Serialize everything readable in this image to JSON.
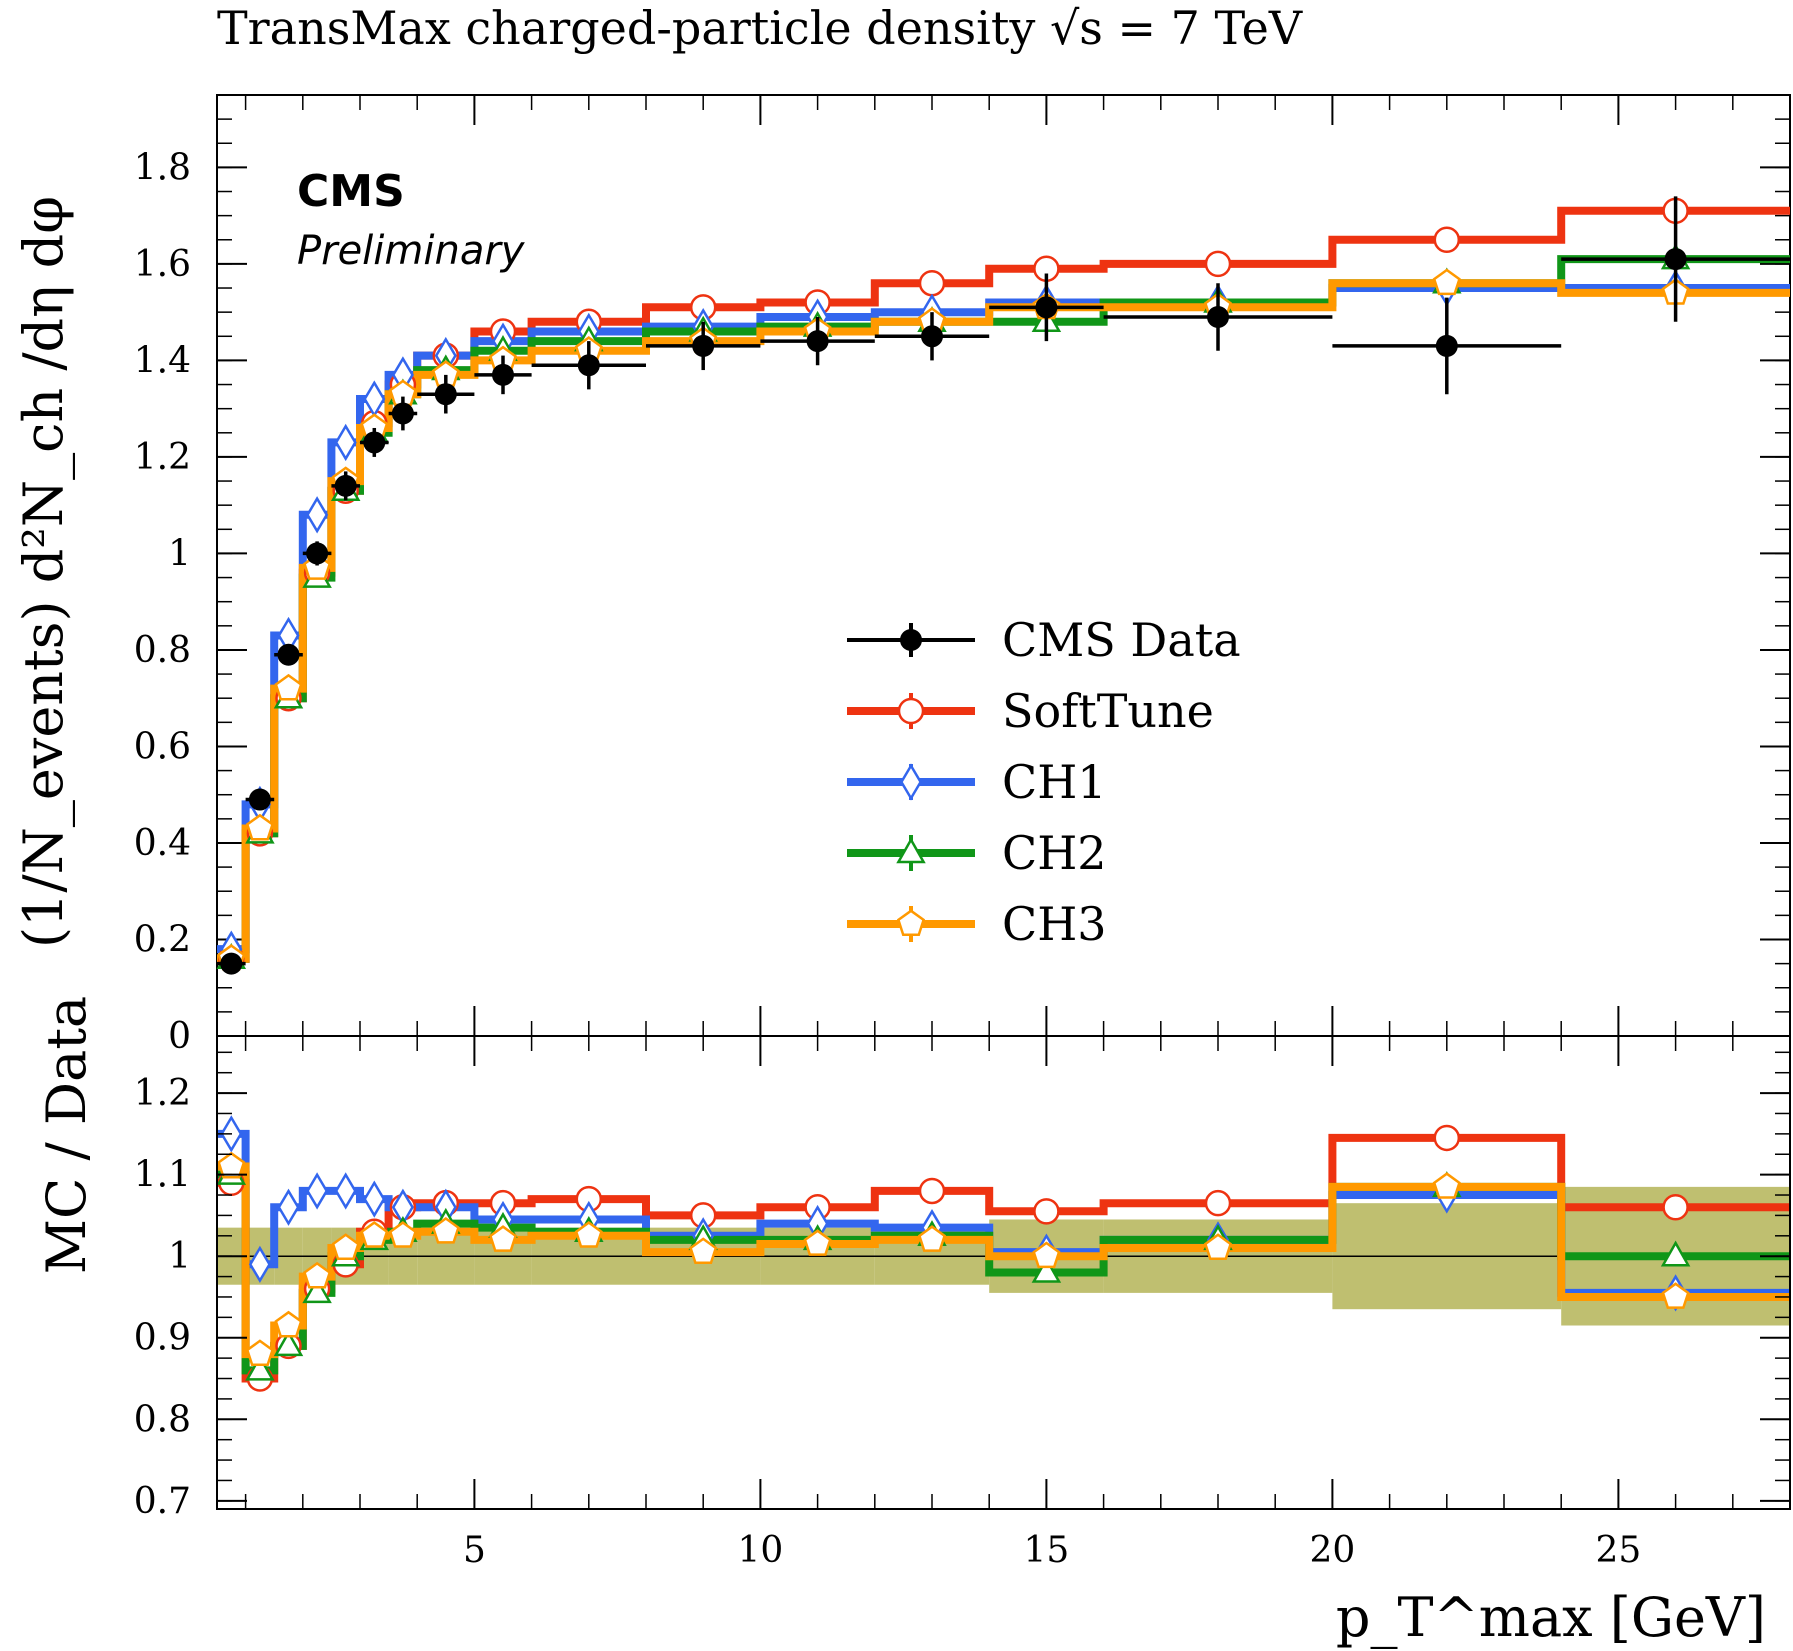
{
  "chart_data": [
    {
      "panel": "main",
      "type": "line",
      "title": "TransMax charged-particle density √s = 7 TeV",
      "experiment_label": "CMS",
      "status_label": "Preliminary",
      "ylabel": "(1/N_events) d²N_ch /dη dφ",
      "xlabel": "p_T^max [GeV]",
      "xlim": [
        0.5,
        28
      ],
      "ylim": [
        0,
        1.95
      ],
      "y_ticks": [
        "0",
        "0.2",
        "0.4",
        "0.6",
        "0.8",
        "1",
        "1.2",
        "1.4",
        "1.6",
        "1.8"
      ],
      "y_tick_values": [
        0,
        0.2,
        0.4,
        0.6,
        0.8,
        1.0,
        1.2,
        1.4,
        1.6,
        1.8
      ],
      "legend_position": "center-right",
      "bin_edges": [
        0.5,
        1.0,
        1.5,
        2.0,
        2.5,
        3.0,
        3.5,
        4.0,
        5.0,
        6.0,
        8.0,
        10.0,
        12.0,
        14.0,
        16.0,
        20.0,
        24.0,
        28.0
      ],
      "data": {
        "name": "CMS Data",
        "color": "#000000",
        "x": [
          0.75,
          1.25,
          1.75,
          2.25,
          2.75,
          3.25,
          3.75,
          4.5,
          5.5,
          7.0,
          9.0,
          11.0,
          13.0,
          15.0,
          18.0,
          22.0,
          26.0
        ],
        "y": [
          0.15,
          0.49,
          0.79,
          1.0,
          1.14,
          1.23,
          1.29,
          1.33,
          1.37,
          1.39,
          1.43,
          1.44,
          1.45,
          1.51,
          1.49,
          1.43,
          1.61
        ],
        "yerr": [
          0.01,
          0.015,
          0.02,
          0.025,
          0.03,
          0.03,
          0.035,
          0.04,
          0.04,
          0.05,
          0.05,
          0.05,
          0.05,
          0.07,
          0.07,
          0.1,
          0.13
        ]
      },
      "series": [
        {
          "name": "SoftTune",
          "color": "#ee3311",
          "marker": "circle",
          "values": [
            0.16,
            0.42,
            0.7,
            0.96,
            1.13,
            1.27,
            1.35,
            1.41,
            1.46,
            1.48,
            1.51,
            1.52,
            1.56,
            1.59,
            1.6,
            1.65,
            1.71
          ]
        },
        {
          "name": "CH1",
          "color": "#3366ee",
          "marker": "diamond",
          "values": [
            0.18,
            0.48,
            0.83,
            1.08,
            1.23,
            1.32,
            1.37,
            1.41,
            1.44,
            1.46,
            1.47,
            1.49,
            1.5,
            1.52,
            1.52,
            1.55,
            1.55
          ]
        },
        {
          "name": "CH2",
          "color": "#109618",
          "marker": "triangle",
          "values": [
            0.16,
            0.42,
            0.7,
            0.95,
            1.13,
            1.25,
            1.33,
            1.38,
            1.42,
            1.44,
            1.46,
            1.47,
            1.48,
            1.48,
            1.52,
            1.56,
            1.61
          ]
        },
        {
          "name": "CH3",
          "color": "#ff9900",
          "marker": "pentagon",
          "values": [
            0.16,
            0.43,
            0.72,
            0.97,
            1.15,
            1.26,
            1.33,
            1.37,
            1.4,
            1.42,
            1.44,
            1.46,
            1.48,
            1.51,
            1.51,
            1.56,
            1.54
          ]
        }
      ]
    },
    {
      "panel": "ratio",
      "type": "line",
      "ylabel": "MC / Data",
      "xlabel": "p_T^max [GeV]",
      "xlim": [
        0.5,
        28
      ],
      "ylim": [
        0.69,
        1.27
      ],
      "y_ticks": [
        "0.7",
        "0.8",
        "0.9",
        "1",
        "1.1",
        "1.2"
      ],
      "y_tick_values": [
        0.7,
        0.8,
        0.9,
        1.0,
        1.1,
        1.2
      ],
      "x_ticks": [
        "5",
        "10",
        "15",
        "20",
        "25"
      ],
      "x_tick_values": [
        5,
        10,
        15,
        20,
        25
      ],
      "band_color": "#b8b860",
      "data_uncertainty_band": [
        0.035,
        0.035,
        0.035,
        0.035,
        0.035,
        0.035,
        0.035,
        0.035,
        0.035,
        0.035,
        0.035,
        0.035,
        0.035,
        0.045,
        0.045,
        0.065,
        0.085
      ],
      "series": [
        {
          "name": "SoftTune",
          "color": "#ee3311",
          "marker": "circle",
          "values": [
            1.09,
            0.85,
            0.89,
            0.96,
            0.99,
            1.03,
            1.06,
            1.065,
            1.065,
            1.07,
            1.05,
            1.06,
            1.08,
            1.055,
            1.065,
            1.145,
            1.06
          ]
        },
        {
          "name": "CH1",
          "color": "#3366ee",
          "marker": "diamond",
          "values": [
            1.15,
            0.99,
            1.06,
            1.08,
            1.08,
            1.07,
            1.06,
            1.06,
            1.045,
            1.045,
            1.025,
            1.04,
            1.035,
            1.005,
            1.02,
            1.075,
            0.955
          ]
        },
        {
          "name": "CH2",
          "color": "#109618",
          "marker": "triangle",
          "values": [
            1.1,
            0.86,
            0.89,
            0.955,
            1.0,
            1.02,
            1.03,
            1.04,
            1.035,
            1.03,
            1.02,
            1.02,
            1.025,
            0.98,
            1.02,
            1.085,
            1.0
          ]
        },
        {
          "name": "CH3",
          "color": "#ff9900",
          "marker": "pentagon",
          "values": [
            1.11,
            0.88,
            0.915,
            0.975,
            1.01,
            1.025,
            1.025,
            1.03,
            1.02,
            1.025,
            1.005,
            1.015,
            1.02,
            1.0,
            1.01,
            1.085,
            0.95
          ]
        }
      ]
    }
  ]
}
